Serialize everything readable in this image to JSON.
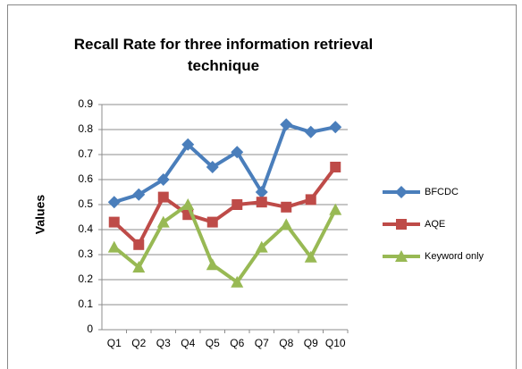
{
  "chart_data": {
    "type": "line",
    "title": "Recall Rate for three information retrieval technique",
    "y_label": "Values",
    "categories": [
      "Q1",
      "Q2",
      "Q3",
      "Q4",
      "Q5",
      "Q6",
      "Q7",
      "Q8",
      "Q9",
      "Q10"
    ],
    "series": [
      {
        "name": "BFCDC",
        "color": "#4a7ebb",
        "marker": "diamond",
        "values": [
          0.51,
          0.54,
          0.6,
          0.74,
          0.65,
          0.71,
          0.55,
          0.82,
          0.79,
          0.81
        ]
      },
      {
        "name": "AQE",
        "color": "#be4b48",
        "marker": "square",
        "values": [
          0.43,
          0.34,
          0.53,
          0.46,
          0.43,
          0.5,
          0.51,
          0.49,
          0.52,
          0.65
        ]
      },
      {
        "name": "Keyword only",
        "color": "#98b954",
        "marker": "triangle",
        "values": [
          0.33,
          0.25,
          0.43,
          0.5,
          0.26,
          0.19,
          0.33,
          0.42,
          0.29,
          0.48
        ]
      }
    ],
    "ylim": [
      0,
      0.9
    ],
    "yticks": [
      0,
      0.1,
      0.2,
      0.3,
      0.4,
      0.5,
      0.6,
      0.7,
      0.8,
      0.9
    ],
    "grid": true,
    "legend": "right"
  }
}
